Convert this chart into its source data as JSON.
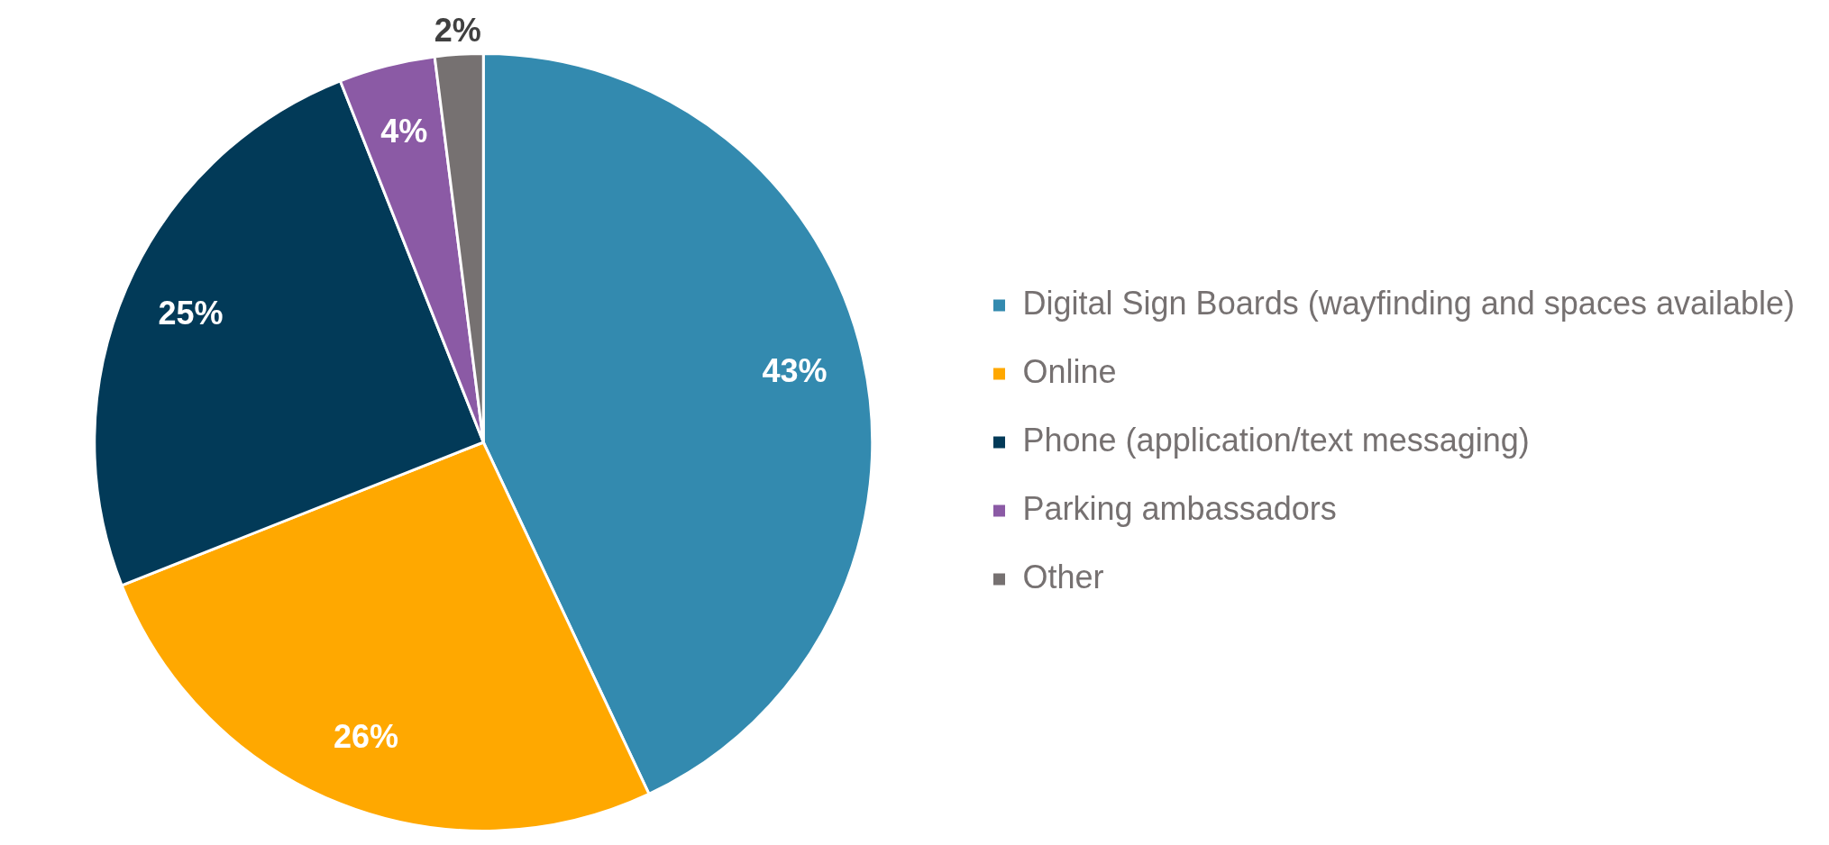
{
  "chart_data": {
    "type": "pie",
    "categories": [
      "Digital Sign Boards (wayfinding and spaces available)",
      "Online",
      "Phone (application/text messaging)",
      "Parking ambassadors",
      "Other"
    ],
    "values": [
      43,
      26,
      25,
      4,
      2
    ],
    "colors": [
      "#338aaf",
      "#ffa800",
      "#023a58",
      "#8b5aa5",
      "#767171"
    ],
    "value_labels": [
      "43%",
      "26%",
      "25%",
      "4%",
      "2%"
    ],
    "legend": "right"
  }
}
